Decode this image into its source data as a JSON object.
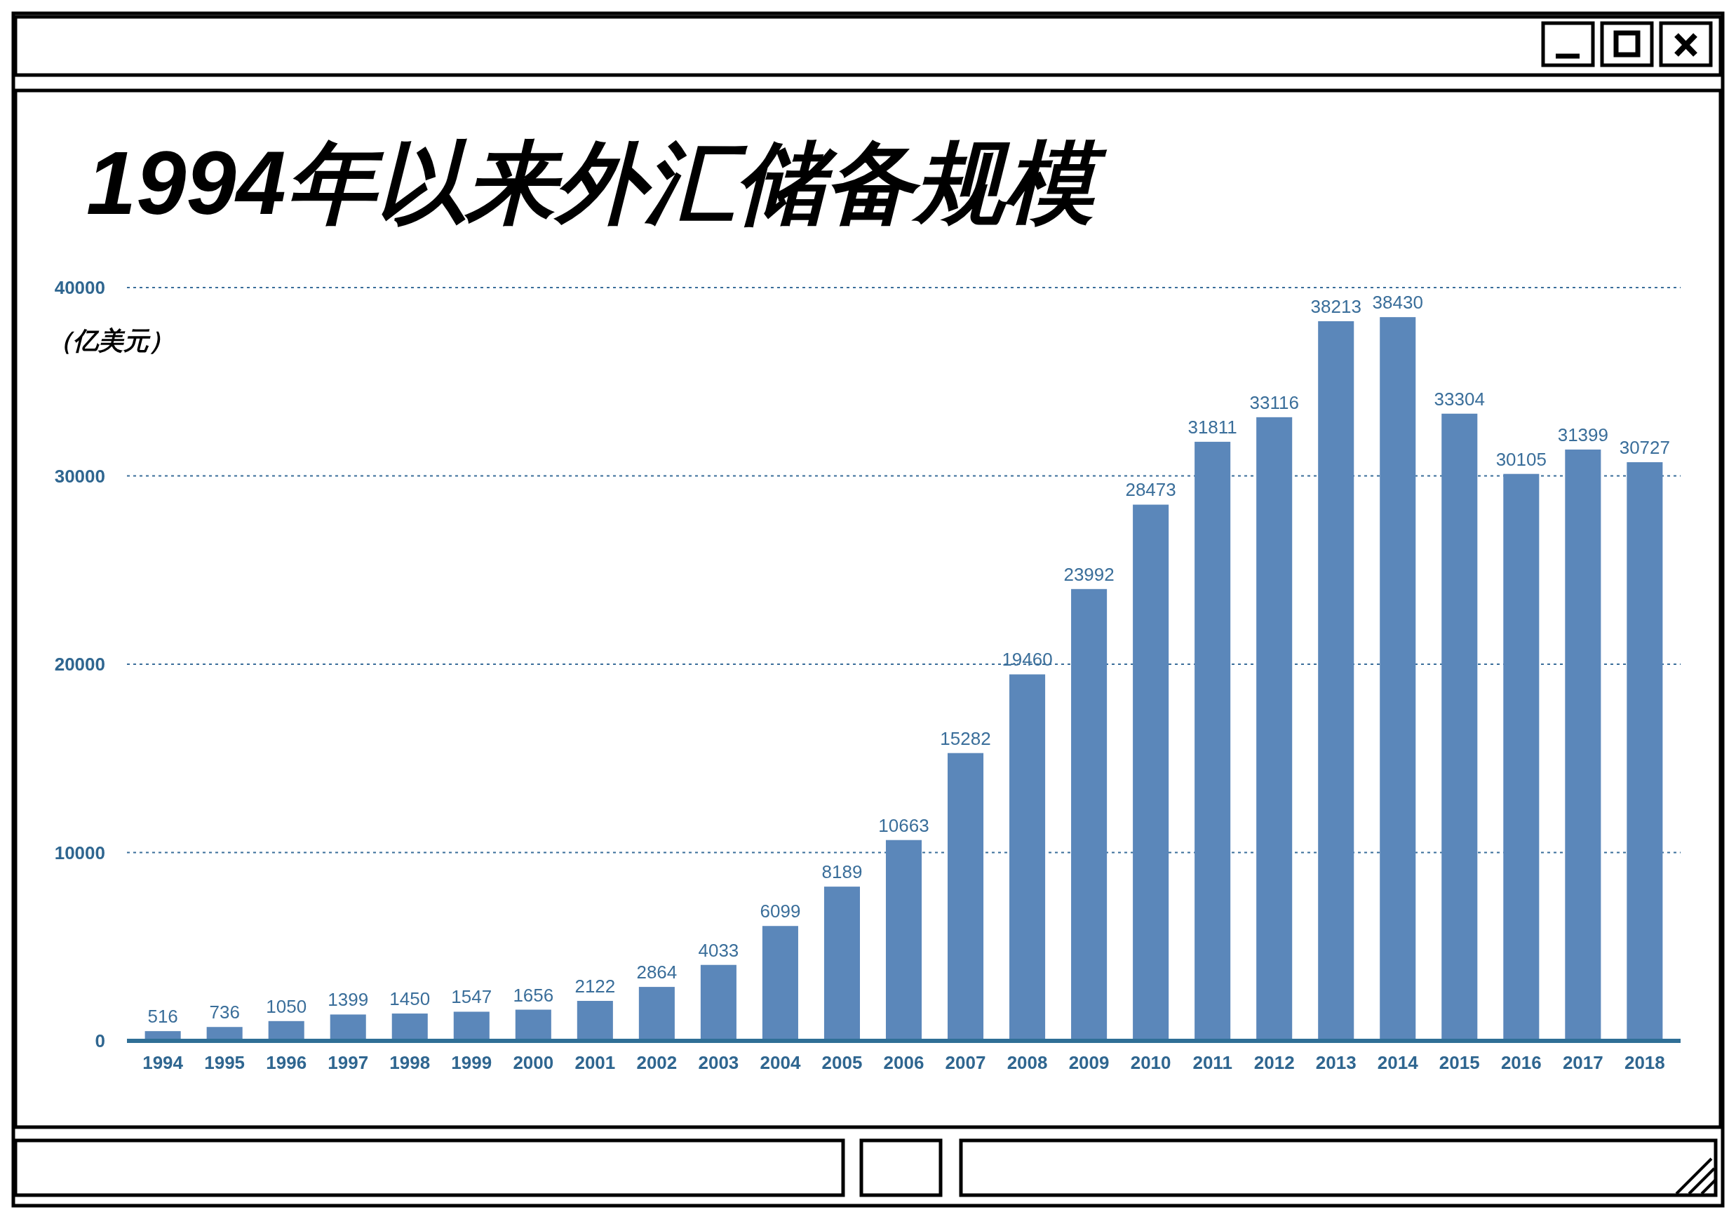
{
  "chart_data": {
    "type": "bar",
    "title": "1994年以来外汇储备规模",
    "ylabel": "（亿美元）",
    "categories": [
      "1994",
      "1995",
      "1996",
      "1997",
      "1998",
      "1999",
      "2000",
      "2001",
      "2002",
      "2003",
      "2004",
      "2005",
      "2006",
      "2007",
      "2008",
      "2009",
      "2010",
      "2011",
      "2012",
      "2013",
      "2014",
      "2015",
      "2016",
      "2017",
      "2018"
    ],
    "values": [
      516,
      736,
      1050,
      1399,
      1450,
      1547,
      1656,
      2122,
      2864,
      4033,
      6099,
      8189,
      10663,
      15282,
      19460,
      23992,
      28473,
      31811,
      33116,
      38213,
      38430,
      33304,
      30105,
      31399,
      30727
    ],
    "color": "#5b87ba",
    "ylim": [
      0,
      40000
    ],
    "yticks": [
      0,
      10000,
      20000,
      30000,
      40000
    ],
    "grid": "y",
    "data_labels": true
  }
}
